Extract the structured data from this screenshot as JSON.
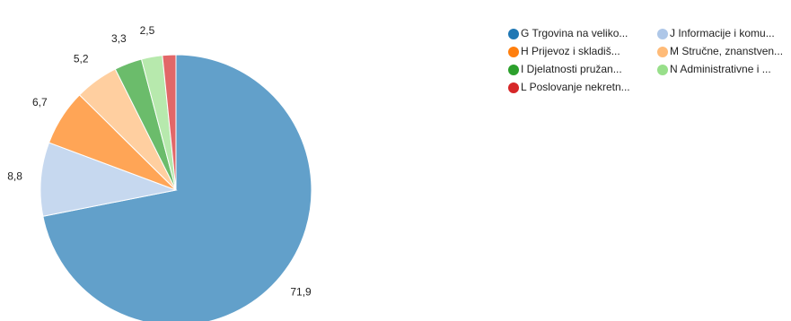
{
  "chart_data": {
    "type": "pie",
    "categories": [
      "G Trgovina na veliko...",
      "J Informacije i komu...",
      "H Prijevoz i skladiš...",
      "M Stručne, znanstven...",
      "I Djelatnosti pružan...",
      "N Administrativne i ...",
      "L Poslovanje nekretn..."
    ],
    "values": [
      71.9,
      8.8,
      6.7,
      5.2,
      3.3,
      2.5,
      1.6
    ],
    "value_labels": [
      "71,9",
      "8,8",
      "6,7",
      "5,2",
      "3,3",
      "2,5",
      null
    ],
    "colors": [
      "#1f77b4",
      "#aec7e8",
      "#ff7f0e",
      "#ffbb78",
      "#2ca02c",
      "#98df8a",
      "#d62728"
    ]
  }
}
